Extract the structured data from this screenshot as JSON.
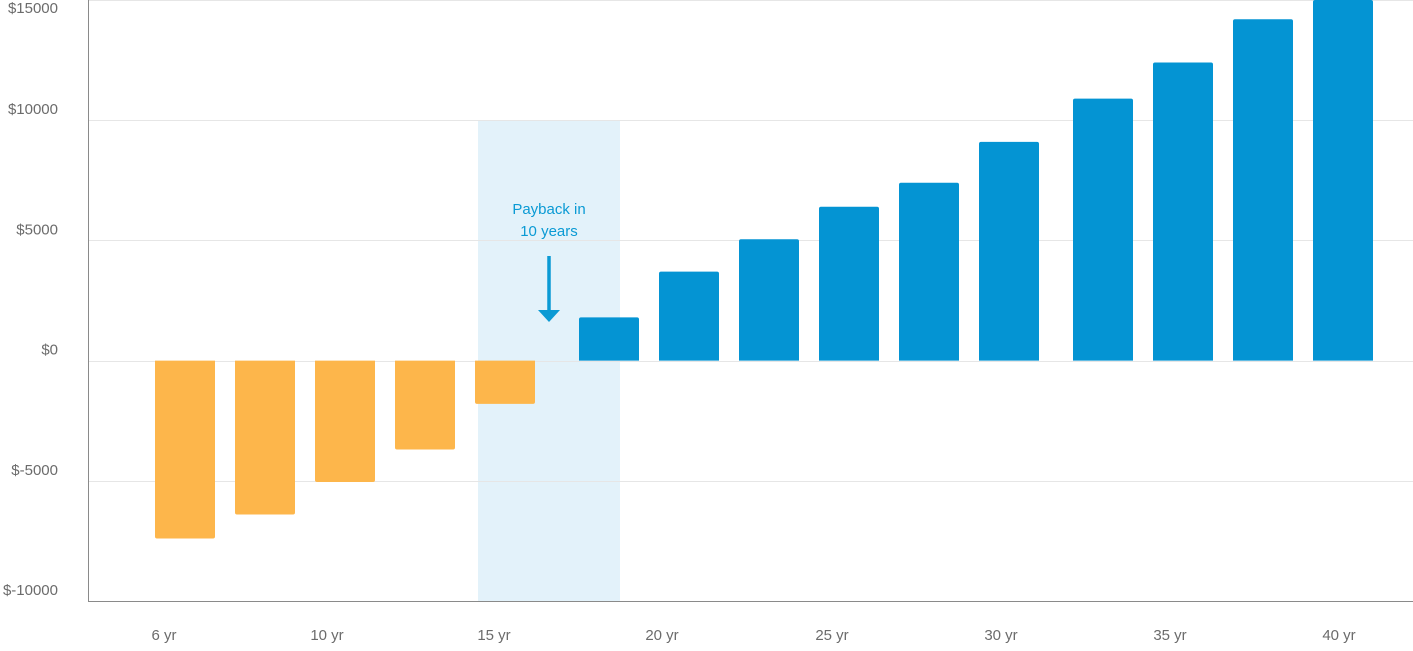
{
  "chart_data": {
    "type": "bar",
    "title": "",
    "xlabel": "",
    "ylabel": "",
    "ylim": [
      -10000,
      15000
    ],
    "grid": true,
    "y_ticks": [
      15000,
      10000,
      5000,
      0,
      -5000,
      -10000
    ],
    "y_tick_labels": [
      "$15000",
      "$10000",
      "$5000",
      "$0",
      "$-5000",
      "$-10000"
    ],
    "x_tick_labels": [
      "6 yr",
      "10 yr",
      "15 yr",
      "20 yr",
      "25 yr",
      "30 yr",
      "35 yr",
      "40 yr"
    ],
    "bars": [
      {
        "value": -7400,
        "color": "#FDB64B"
      },
      {
        "value": -6400,
        "color": "#FDB64B"
      },
      {
        "value": -5050,
        "color": "#FDB64B"
      },
      {
        "value": -3700,
        "color": "#FDB64B"
      },
      {
        "value": -1800,
        "color": "#FDB64B"
      },
      {
        "value": 1800,
        "color": "#0494D3"
      },
      {
        "value": 3700,
        "color": "#0494D3"
      },
      {
        "value": 5050,
        "color": "#0494D3"
      },
      {
        "value": 6400,
        "color": "#0494D3"
      },
      {
        "value": 7400,
        "color": "#0494D3"
      },
      {
        "value": 9100,
        "color": "#0494D3"
      },
      {
        "value": 10900,
        "color": "#0494D3"
      },
      {
        "value": 12400,
        "color": "#0494D3"
      },
      {
        "value": 14200,
        "color": "#0494D3"
      },
      {
        "value": 15000,
        "color": "#0494D3"
      }
    ],
    "annotation": {
      "text_line1": "Payback in",
      "text_line2": "10 years",
      "color": "#0A9AD4",
      "band_color": "#E3F2FA",
      "band_top_value": 10000
    }
  }
}
